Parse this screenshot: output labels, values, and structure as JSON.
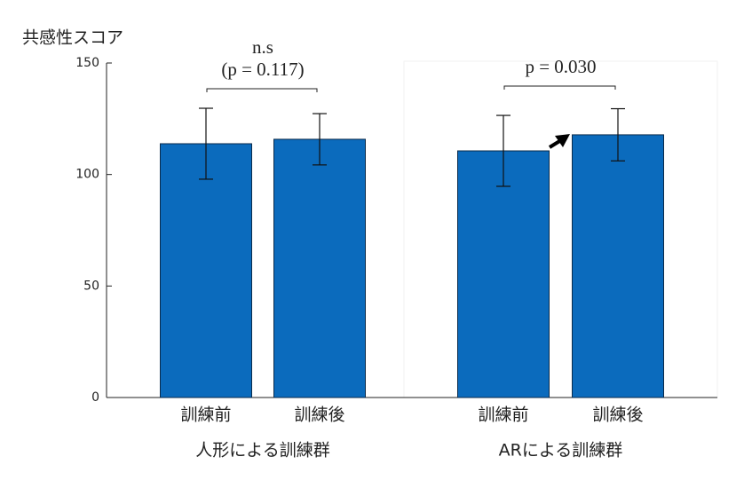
{
  "chart_data": {
    "type": "bar",
    "y_label": "共感性スコア",
    "groups": [
      {
        "name": "人形による訓練群",
        "categories": [
          "訓練前",
          "訓練後"
        ],
        "values": [
          113.8,
          115.8
        ],
        "errors": [
          15.9,
          11.5
        ]
      },
      {
        "name": "ARによる訓練群",
        "categories": [
          "訓練前",
          "訓練後"
        ],
        "values": [
          110.6,
          117.8
        ],
        "errors": [
          15.9,
          11.7
        ]
      }
    ],
    "annotations": [
      [
        "n.s",
        "(p = 0.117)"
      ],
      [
        "p = 0.030"
      ]
    ],
    "color": "#0b6bbd",
    "ylim": [
      0,
      150
    ],
    "yticks": [
      0,
      50,
      100,
      150
    ]
  }
}
